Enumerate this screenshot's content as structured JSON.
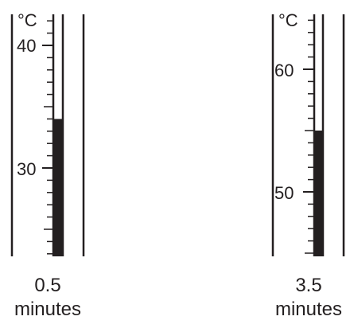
{
  "thermometers": [
    {
      "id": "left",
      "unit": "°C",
      "scale_labels": [
        "40",
        "30"
      ],
      "scale_values": [
        40,
        30
      ],
      "scale_min": 23,
      "scale_max": 42,
      "reading": 34,
      "time_value": "0.5",
      "time_unit": "minutes"
    },
    {
      "id": "right",
      "unit": "°C",
      "scale_labels": [
        "60",
        "50"
      ],
      "scale_values": [
        60,
        50
      ],
      "scale_min": 45,
      "scale_max": 64,
      "reading": 55,
      "time_value": "3.5",
      "time_unit": "minutes"
    }
  ],
  "colors": {
    "ink": "#231f20",
    "background": "#ffffff"
  }
}
